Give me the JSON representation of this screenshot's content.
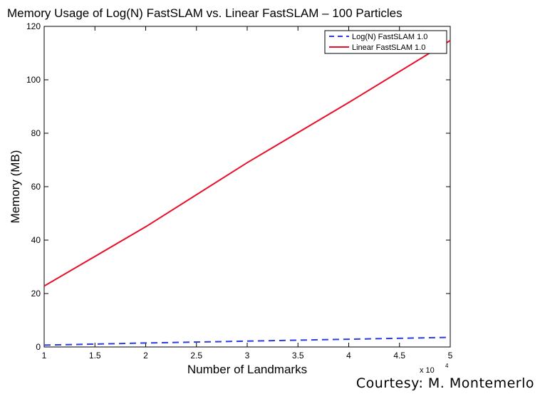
{
  "credit": "Courtesy: M. Montemerlo",
  "chart_data": {
    "type": "line",
    "title": "Memory Usage of Log(N) FastSLAM vs. Linear FastSLAM – 100 Particles",
    "xlabel": "Number of Landmarks",
    "ylabel": "Memory (MB)",
    "x_exponent_label": "x 10",
    "x_exponent_power": "4",
    "xlim": [
      1,
      5
    ],
    "ylim": [
      0,
      120
    ],
    "xticks": [
      1,
      1.5,
      2,
      2.5,
      3,
      3.5,
      4,
      4.5,
      5
    ],
    "xtick_labels": [
      "1",
      "1.5",
      "2",
      "2.5",
      "3",
      "3.5",
      "4",
      "4.5",
      "5"
    ],
    "yticks": [
      0,
      20,
      40,
      60,
      80,
      100,
      120
    ],
    "ytick_labels": [
      "0",
      "20",
      "40",
      "60",
      "80",
      "100",
      "120"
    ],
    "grid": false,
    "legend_position": "top-right",
    "series": [
      {
        "name": "Log(N) FastSLAM 1.0",
        "color": "#2b3de0",
        "dash": "dashed",
        "x": [
          1,
          2,
          3,
          4,
          5
        ],
        "y": [
          0.7,
          1.5,
          2.2,
          2.9,
          3.6
        ]
      },
      {
        "name": "Linear FastSLAM 1.0",
        "color": "#e8102a",
        "dash": "solid",
        "x": [
          1,
          2,
          3,
          4,
          5
        ],
        "y": [
          22.8,
          45,
          69,
          91.5,
          114.7
        ]
      }
    ]
  }
}
